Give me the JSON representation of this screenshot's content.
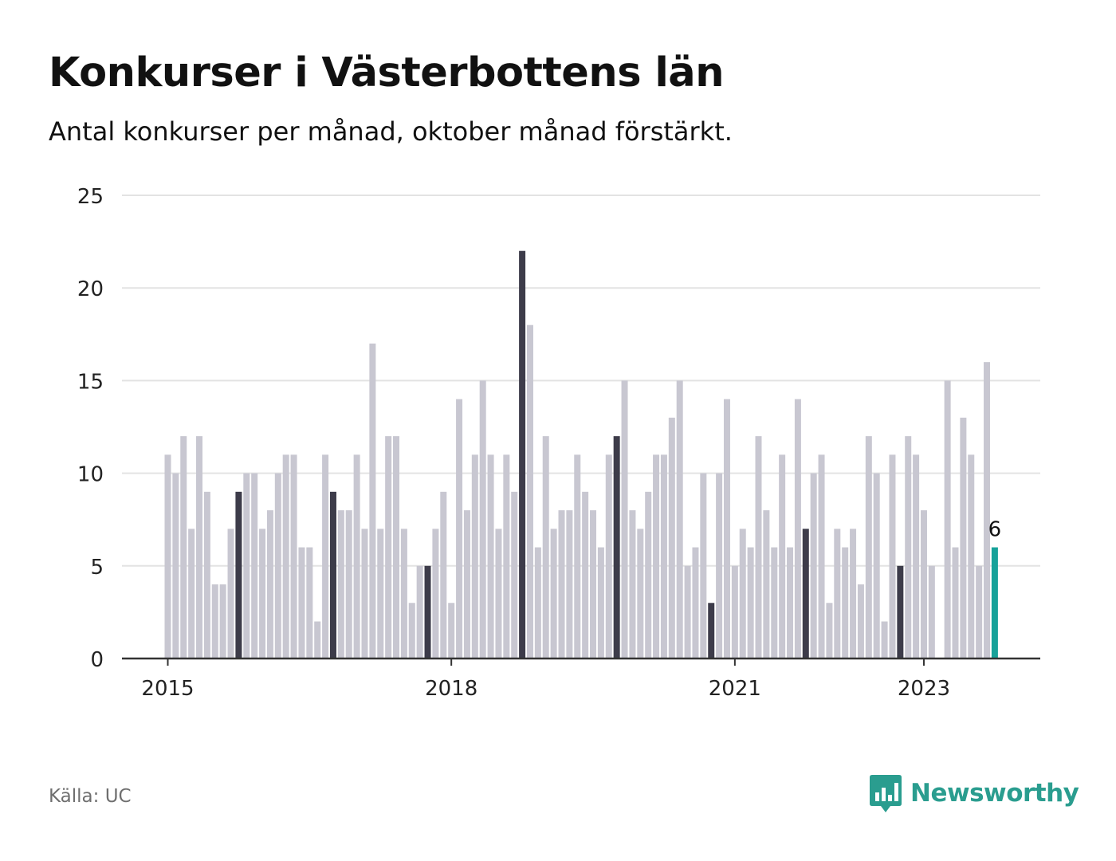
{
  "title": "Konkurser i Västerbottens län",
  "subtitle": "Antal konkurser per månad, oktober månad förstärkt.",
  "source": "Källa: UC",
  "logo": {
    "text": "Newsworthy",
    "icon": "newsworthy-logo-icon"
  },
  "colors": {
    "bar": "#c8c7d1",
    "highlight": "#3d3c4a",
    "latest": "#17a29a",
    "grid": "#e3e3e3",
    "axis": "#333333",
    "brand": "#2a9d8f"
  },
  "chart_data": {
    "type": "bar",
    "start": "2015-01",
    "x_tick_labels": [
      {
        "label": "2015",
        "index": 0
      },
      {
        "label": "2018",
        "index": 36
      },
      {
        "label": "2021",
        "index": 72
      },
      {
        "label": "2023",
        "index": 96
      }
    ],
    "values": [
      11,
      10,
      12,
      7,
      12,
      9,
      4,
      4,
      7,
      9,
      10,
      10,
      7,
      8,
      10,
      11,
      11,
      6,
      6,
      2,
      11,
      9,
      8,
      8,
      11,
      7,
      17,
      7,
      12,
      12,
      7,
      3,
      5,
      5,
      7,
      9,
      3,
      14,
      8,
      11,
      15,
      11,
      7,
      11,
      9,
      22,
      18,
      6,
      12,
      7,
      8,
      8,
      11,
      9,
      8,
      6,
      11,
      12,
      15,
      8,
      7,
      9,
      11,
      11,
      13,
      15,
      5,
      6,
      10,
      3,
      10,
      14,
      5,
      7,
      6,
      12,
      8,
      6,
      11,
      6,
      14,
      7,
      10,
      11,
      3,
      7,
      6,
      7,
      4,
      12,
      10,
      2,
      11,
      5,
      12,
      11,
      8,
      5,
      0,
      15,
      6,
      13,
      11,
      5,
      16,
      6
    ],
    "highlight_rule": "october",
    "latest_label": "6",
    "ylim": [
      0,
      25
    ],
    "y_ticks": [
      0,
      5,
      10,
      15,
      20,
      25
    ],
    "grid": true,
    "xlabel": "",
    "ylabel": ""
  }
}
